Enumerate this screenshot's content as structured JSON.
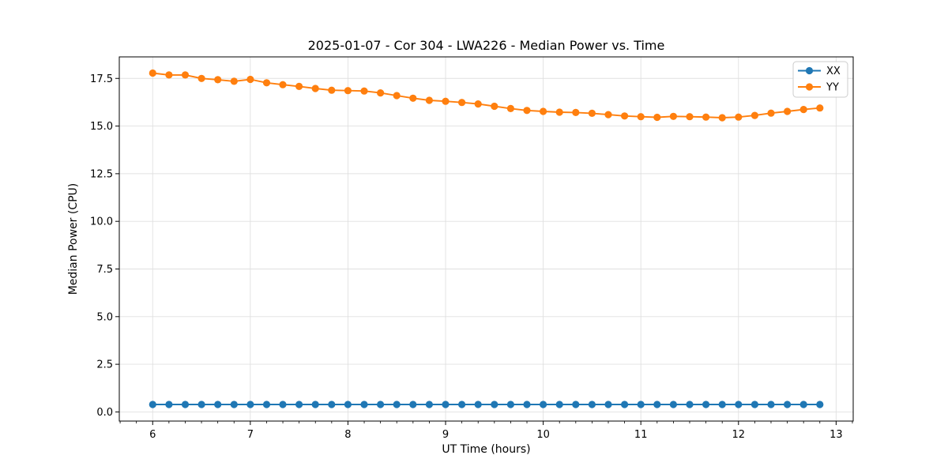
{
  "chart_data": {
    "type": "line",
    "title": "2025-01-07 - Cor 304 - LWA226 - Median Power vs. Time",
    "xlabel": "UT Time (hours)",
    "ylabel": "Median Power (CPU)",
    "xlim": [
      5.658,
      13.175
    ],
    "ylim": [
      -0.48,
      18.63
    ],
    "xticks": [
      6,
      7,
      8,
      9,
      10,
      11,
      12,
      13
    ],
    "yticks": [
      0.0,
      2.5,
      5.0,
      7.5,
      10.0,
      12.5,
      15.0,
      17.5
    ],
    "x_minor_step": 0.1666667,
    "grid": true,
    "grid_color": "#e0e0e0",
    "legend_position": "upper right",
    "x": [
      6.0,
      6.1667,
      6.3333,
      6.5,
      6.6667,
      6.8333,
      7.0,
      7.1667,
      7.3333,
      7.5,
      7.6667,
      7.8333,
      8.0,
      8.1667,
      8.3333,
      8.5,
      8.6667,
      8.8333,
      9.0,
      9.1667,
      9.3333,
      9.5,
      9.6667,
      9.8333,
      10.0,
      10.1667,
      10.3333,
      10.5,
      10.6667,
      10.8333,
      11.0,
      11.1667,
      11.3333,
      11.5,
      11.6667,
      11.8333,
      12.0,
      12.1667,
      12.3333,
      12.5,
      12.6667,
      12.8333
    ],
    "series": [
      {
        "name": "XX",
        "color": "#1f77b4",
        "values": [
          0.39,
          0.39,
          0.39,
          0.39,
          0.39,
          0.39,
          0.39,
          0.39,
          0.39,
          0.39,
          0.39,
          0.39,
          0.39,
          0.39,
          0.39,
          0.39,
          0.39,
          0.39,
          0.39,
          0.39,
          0.39,
          0.39,
          0.39,
          0.39,
          0.39,
          0.39,
          0.39,
          0.39,
          0.39,
          0.39,
          0.39,
          0.39,
          0.39,
          0.39,
          0.39,
          0.39,
          0.39,
          0.39,
          0.39,
          0.39,
          0.39,
          0.39
        ]
      },
      {
        "name": "YY",
        "color": "#ff7f0e",
        "values": [
          17.78,
          17.68,
          17.68,
          17.5,
          17.43,
          17.35,
          17.45,
          17.27,
          17.17,
          17.08,
          16.97,
          16.88,
          16.86,
          16.84,
          16.74,
          16.6,
          16.46,
          16.35,
          16.3,
          16.24,
          16.16,
          16.04,
          15.92,
          15.82,
          15.77,
          15.73,
          15.71,
          15.67,
          15.6,
          15.53,
          15.49,
          15.46,
          15.51,
          15.49,
          15.47,
          15.44,
          15.47,
          15.56,
          15.68,
          15.77,
          15.87,
          15.95
        ]
      }
    ],
    "legend": {
      "entries": [
        "XX",
        "YY"
      ]
    }
  }
}
